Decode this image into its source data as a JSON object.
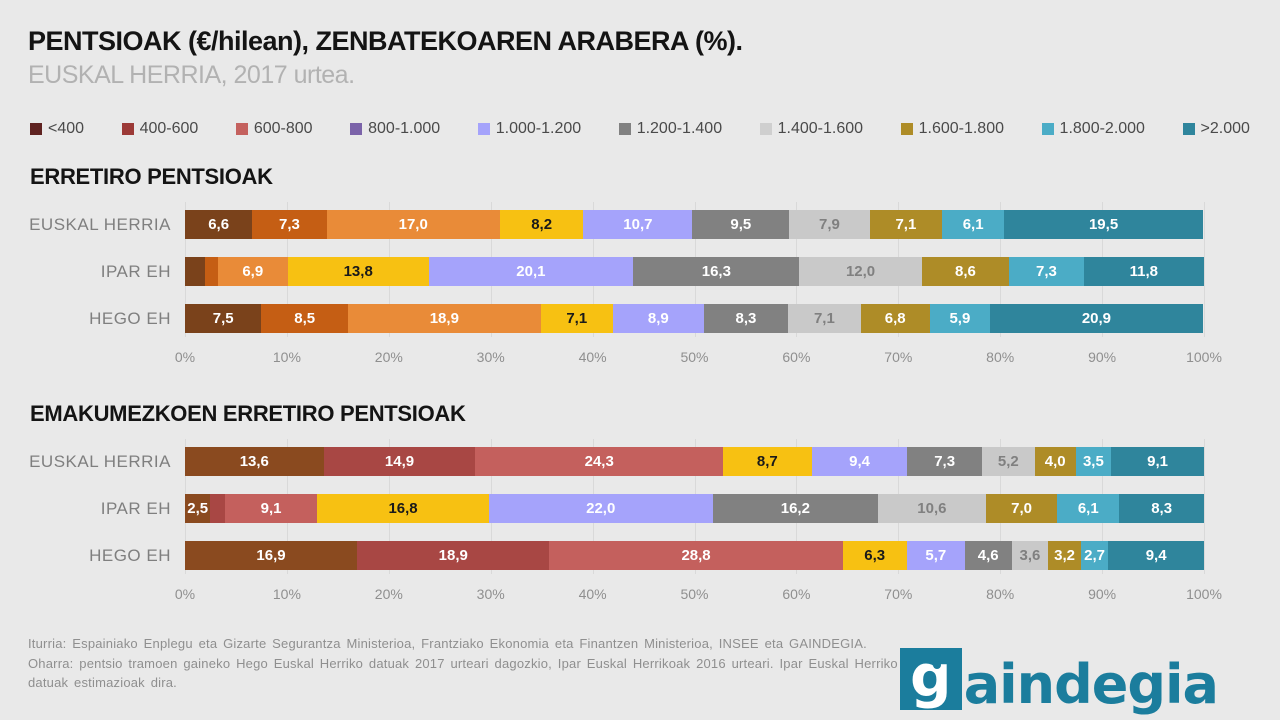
{
  "page": {
    "title": "PENTSIOAK (€/hilean), ZENBATEKOAREN ARABERA (%).",
    "subtitle": "EUSKAL HERRIA, 2017 urtea.",
    "background": "#e9e9e9"
  },
  "legend": {
    "items": [
      {
        "label": "<400",
        "color": "#5f2321"
      },
      {
        "label": "400-600",
        "color": "#9c3a37"
      },
      {
        "label": "600-800",
        "color": "#c4615e"
      },
      {
        "label": "800-1.000",
        "color": "#7b63a9"
      },
      {
        "label": "1.000-1.200",
        "color": "#a5a3fb"
      },
      {
        "label": "1.200-1.400",
        "color": "#818181"
      },
      {
        "label": "1.400-1.600",
        "color": "#cfcfcf"
      },
      {
        "label": "1.600-1.800",
        "color": "#ae8c27"
      },
      {
        "label": "1.800-2.000",
        "color": "#4bacc6"
      },
      {
        "label": ">2.000",
        "color": "#2f859c"
      }
    ]
  },
  "chart_data": [
    {
      "type": "bar",
      "variant": "horizontal-stacked-100",
      "title": "ERRETIRO PENTSIOAK",
      "categories": [
        "<400",
        "400-600",
        "600-800",
        "800-1.000",
        "1.000-1.200",
        "1.200-1.400",
        "1.400-1.600",
        "1.600-1.800",
        "1.800-2.000",
        ">2.000"
      ],
      "palette": [
        "#7a421b",
        "#c55e14",
        "#e98b38",
        "#f7c112",
        "#a5a3fb",
        "#818181",
        "#c9c9c9",
        "#ae8c27",
        "#4bacc6",
        "#2f859c"
      ],
      "label_colors": [
        "#ffffff",
        "#ffffff",
        "#ffffff",
        "#1a1a1a",
        "#ffffff",
        "#ffffff",
        "#808080",
        "#ffffff",
        "#ffffff",
        "#ffffff"
      ],
      "xlim": [
        0,
        100
      ],
      "x_ticks": [
        "0%",
        "10%",
        "20%",
        "30%",
        "40%",
        "50%",
        "60%",
        "70%",
        "80%",
        "90%",
        "100%"
      ],
      "rows": [
        {
          "label": "EUSKAL HERRIA",
          "values": [
            6.6,
            7.3,
            17.0,
            8.2,
            10.7,
            9.5,
            7.9,
            7.1,
            6.1,
            19.5
          ],
          "labels": [
            "6,6",
            "7,3",
            "17,0",
            "8,2",
            "10,7",
            "9,5",
            "7,9",
            "7,1",
            "6,1",
            "19,5"
          ]
        },
        {
          "label": "IPAR EH",
          "values": [
            2.0,
            1.2,
            6.9,
            13.8,
            20.1,
            16.3,
            12.0,
            8.6,
            7.3,
            11.8
          ],
          "labels": [
            "",
            "",
            "6,9",
            "13,8",
            "20,1",
            "16,3",
            "12,0",
            "8,6",
            "7,3",
            "11,8"
          ]
        },
        {
          "label": "HEGO EH",
          "values": [
            7.5,
            8.5,
            18.9,
            7.1,
            8.9,
            8.3,
            7.1,
            6.8,
            5.9,
            20.9
          ],
          "labels": [
            "7,5",
            "8,5",
            "18,9",
            "7,1",
            "8,9",
            "8,3",
            "7,1",
            "6,8",
            "5,9",
            "20,9"
          ]
        }
      ]
    },
    {
      "type": "bar",
      "variant": "horizontal-stacked-100",
      "title": "EMAKUMEZKOEN ERRETIRO PENTSIOAK",
      "categories": [
        "<400",
        "400-600",
        "600-800",
        "800-1.000",
        "1.000-1.200",
        "1.200-1.400",
        "1.400-1.600",
        "1.600-1.800",
        "1.800-2.000",
        ">2.000"
      ],
      "palette": [
        "#8a4a1f",
        "#a84744",
        "#c4605d",
        "#f7c112",
        "#a5a3fb",
        "#818181",
        "#c9c9c9",
        "#ae8c27",
        "#4bacc6",
        "#2f859c"
      ],
      "label_colors": [
        "#ffffff",
        "#ffffff",
        "#ffffff",
        "#1a1a1a",
        "#ffffff",
        "#ffffff",
        "#808080",
        "#ffffff",
        "#ffffff",
        "#ffffff"
      ],
      "xlim": [
        0,
        100
      ],
      "x_ticks": [
        "0%",
        "10%",
        "20%",
        "30%",
        "40%",
        "50%",
        "60%",
        "70%",
        "80%",
        "90%",
        "100%"
      ],
      "rows": [
        {
          "label": "EUSKAL HERRIA",
          "values": [
            13.6,
            14.9,
            24.3,
            8.7,
            9.4,
            7.3,
            5.2,
            4.0,
            3.5,
            9.1
          ],
          "labels": [
            "13,6",
            "14,9",
            "24,3",
            "8,7",
            "9,4",
            "7,3",
            "5,2",
            "4,0",
            "3,5",
            "9,1"
          ]
        },
        {
          "label": "IPAR EH",
          "values": [
            2.5,
            1.4,
            9.1,
            16.8,
            22.0,
            16.2,
            10.6,
            7.0,
            6.1,
            8.3
          ],
          "labels": [
            "2,5",
            "",
            "9,1",
            "16,8",
            "22,0",
            "16,2",
            "10,6",
            "7,0",
            "6,1",
            "8,3"
          ]
        },
        {
          "label": "HEGO EH",
          "values": [
            16.9,
            18.9,
            28.8,
            6.3,
            5.7,
            4.6,
            3.6,
            3.2,
            2.7,
            9.4
          ],
          "labels": [
            "16,9",
            "18,9",
            "28,8",
            "6,3",
            "5,7",
            "4,6",
            "3,6",
            "3,2",
            "2,7",
            "9,4"
          ]
        }
      ]
    }
  ],
  "footer": {
    "line1": "Iturria: Espainiako Enplegu eta Gizarte Segurantza Ministerioa, Frantziako Ekonomia eta Finantzen Ministerioa, INSEE eta GAINDEGIA.",
    "line2": "Oharra: pentsio tramoen gaineko Hego Euskal Herriko datuak 2017 urteari dagozkio, Ipar Euskal Herrikoak 2016 urteari. Ipar Euskal Herriko",
    "line3": "datuak estimazioak dira."
  },
  "logo": {
    "mark": "g",
    "text": "aindegia",
    "color": "#1b7d9d"
  }
}
